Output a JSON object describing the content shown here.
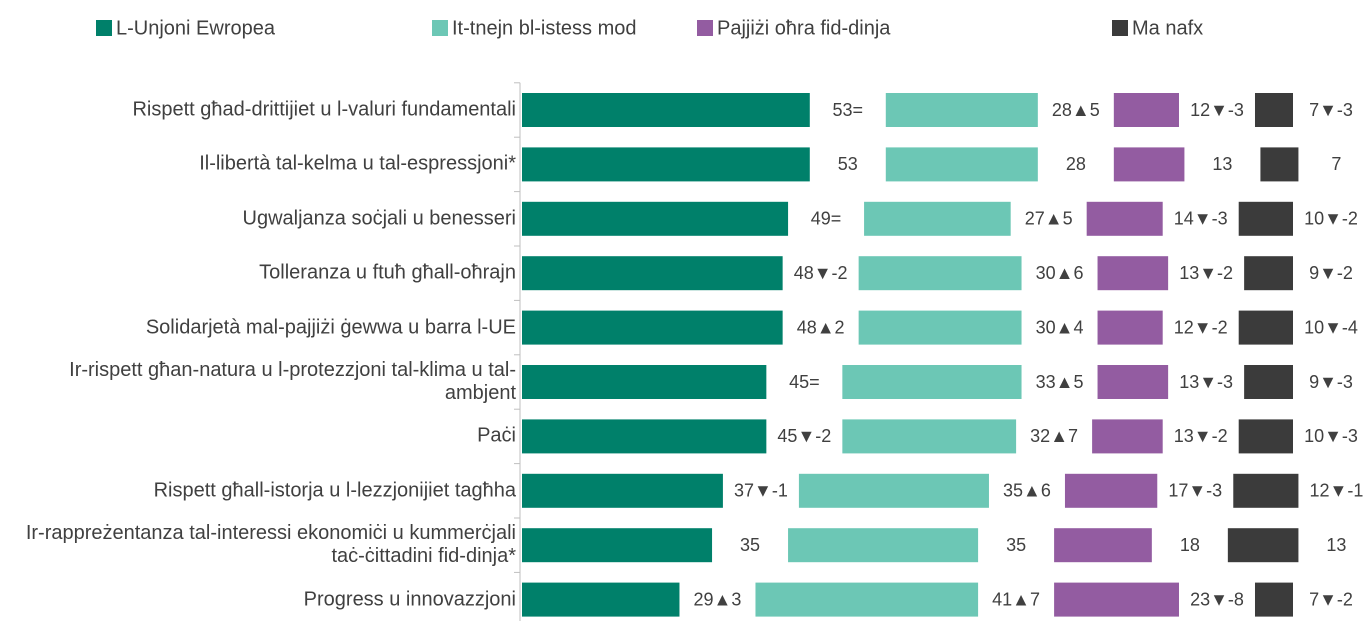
{
  "chart_data": {
    "type": "bar",
    "orientation": "horizontal",
    "stacked": true,
    "categories": [
      "Rispett għad-drittijiet u l-valuri fundamentali",
      "Il-libertà tal-kelma u tal-espressjoni*",
      "Ugwaljanza soċjali u benesseri",
      "Tolleranza u ftuħ għall-oħrajn",
      "Solidarjetà mal-pajjiżi ġewwa u barra l-UE",
      "Ir-rispett għan-natura u l-protezzjoni tal-klima u tal-ambjent",
      "Paċi",
      "Rispett għall-istorja u l-lezzjonijiet tagħha",
      "Ir-rappreżentanza tal-interessi ekonomiċi u kummerċjali taċ-ċittadini fid-dinja*",
      "Progress u innovazzjoni"
    ],
    "series": [
      {
        "name": "L-Unjoni Ewropea",
        "color": "#00806a",
        "values": [
          53,
          53,
          49,
          48,
          48,
          45,
          45,
          37,
          35,
          29
        ],
        "value_labels": [
          "53=",
          "53",
          "49=",
          "48▼-2",
          "48▲2",
          "45=",
          "45▼-2",
          "37▼-1",
          "35",
          "29▲3"
        ]
      },
      {
        "name": "It-tnejn bl-istess mod",
        "color": "#6cc7b5",
        "values": [
          28,
          28,
          27,
          30,
          30,
          33,
          32,
          35,
          35,
          41
        ],
        "value_labels": [
          "28▲5",
          "28",
          "27▲5",
          "30▲6",
          "30▲4",
          "33▲5",
          "32▲7",
          "35▲6",
          "35",
          "41▲7"
        ]
      },
      {
        "name": "Pajjiżi oħra fid-dinja",
        "color": "#935ca1",
        "values": [
          12,
          13,
          14,
          13,
          12,
          13,
          13,
          17,
          18,
          23
        ],
        "value_labels": [
          "12▼-3",
          "13",
          "14▼-3",
          "13▼-2",
          "12▼-2",
          "13▼-3",
          "13▼-2",
          "17▼-3",
          "18",
          "23▼-8"
        ]
      },
      {
        "name": "Ma nafx",
        "color": "#3b3b3b",
        "values": [
          7,
          7,
          10,
          9,
          10,
          9,
          10,
          12,
          13,
          7
        ],
        "value_labels": [
          "7▼-3",
          "7",
          "10▼-2",
          "9▼-2",
          "10▼-4",
          "9▼-3",
          "10▼-3",
          "12▼-1",
          "13",
          "7▼-2"
        ]
      }
    ],
    "legend": "top"
  }
}
